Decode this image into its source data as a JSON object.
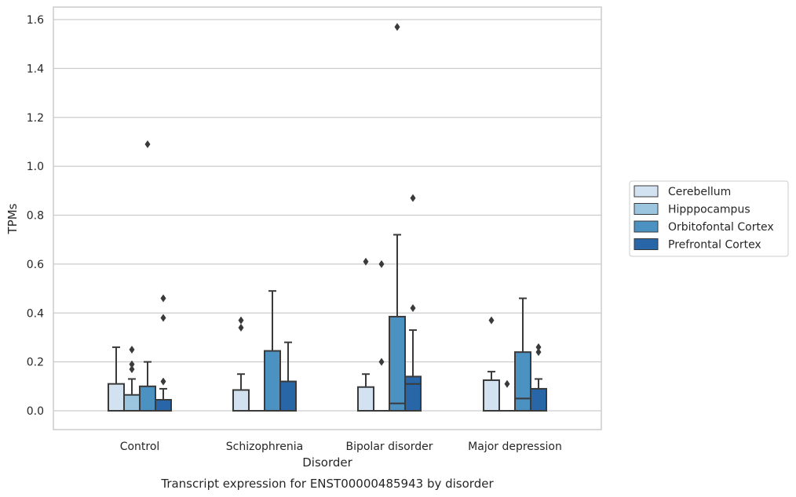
{
  "caption": "Transcript expression for ENST00000485943 by disorder",
  "chart_data": {
    "type": "box",
    "xlabel": "Disorder",
    "ylabel": "TPMs",
    "ylim": [
      -0.075,
      1.65
    ],
    "yticks": [
      0.0,
      0.2,
      0.4,
      0.6,
      0.8,
      1.0,
      1.2,
      1.4,
      1.6
    ],
    "ytick_labels": [
      "0.0",
      "0.2",
      "0.4",
      "0.6",
      "0.8",
      "1.0",
      "1.2",
      "1.4",
      "1.6"
    ],
    "grid": "horizontal",
    "legend_position": "right",
    "categories": [
      "Control",
      "Schizophrenia",
      "Bipolar disorder",
      "Major depression"
    ],
    "series": [
      {
        "name": "Cerebellum",
        "color": "#d3e2f0",
        "boxes": [
          {
            "q1": 0.0,
            "median": 0.0,
            "q3": 0.11,
            "whisker_low": 0.0,
            "whisker_high": 0.26,
            "outliers": []
          },
          {
            "q1": 0.0,
            "median": 0.0,
            "q3": 0.085,
            "whisker_low": 0.0,
            "whisker_high": 0.15,
            "outliers": [
              0.34,
              0.37
            ]
          },
          {
            "q1": 0.0,
            "median": 0.0,
            "q3": 0.097,
            "whisker_low": 0.0,
            "whisker_high": 0.15,
            "outliers": [
              0.61
            ]
          },
          {
            "q1": 0.0,
            "median": 0.0,
            "q3": 0.125,
            "whisker_low": 0.0,
            "whisker_high": 0.16,
            "outliers": [
              0.37
            ]
          }
        ]
      },
      {
        "name": "Hipppocampus",
        "color": "#9cc5e0",
        "boxes": [
          {
            "q1": 0.0,
            "median": 0.0,
            "q3": 0.065,
            "whisker_low": 0.0,
            "whisker_high": 0.13,
            "outliers": [
              0.17,
              0.19,
              0.25
            ]
          },
          {
            "q1": 0.0,
            "median": 0.0,
            "q3": 0.0,
            "whisker_low": 0.0,
            "whisker_high": 0.0,
            "outliers": []
          },
          {
            "q1": 0.0,
            "median": 0.0,
            "q3": 0.0,
            "whisker_low": 0.0,
            "whisker_high": 0.0,
            "outliers": [
              0.2,
              0.6
            ]
          },
          {
            "q1": 0.0,
            "median": 0.0,
            "q3": 0.0,
            "whisker_low": 0.0,
            "whisker_high": 0.0,
            "outliers": [
              0.11
            ]
          }
        ]
      },
      {
        "name": "Orbitofontal Cortex",
        "color": "#4b91c2",
        "boxes": [
          {
            "q1": 0.0,
            "median": 0.0,
            "q3": 0.1,
            "whisker_low": 0.0,
            "whisker_high": 0.2,
            "outliers": [
              1.09
            ]
          },
          {
            "q1": 0.0,
            "median": 0.0,
            "q3": 0.245,
            "whisker_low": 0.0,
            "whisker_high": 0.49,
            "outliers": []
          },
          {
            "q1": 0.0,
            "median": 0.03,
            "q3": 0.385,
            "whisker_low": 0.0,
            "whisker_high": 0.72,
            "outliers": [
              1.57
            ]
          },
          {
            "q1": 0.0,
            "median": 0.05,
            "q3": 0.24,
            "whisker_low": 0.0,
            "whisker_high": 0.46,
            "outliers": []
          }
        ]
      },
      {
        "name": "Prefrontal Cortex",
        "color": "#2866a8",
        "boxes": [
          {
            "q1": 0.0,
            "median": 0.0,
            "q3": 0.045,
            "whisker_low": 0.0,
            "whisker_high": 0.09,
            "outliers": [
              0.12,
              0.38,
              0.46
            ]
          },
          {
            "q1": 0.0,
            "median": 0.0,
            "q3": 0.12,
            "whisker_low": 0.0,
            "whisker_high": 0.28,
            "outliers": []
          },
          {
            "q1": 0.0,
            "median": 0.11,
            "q3": 0.14,
            "whisker_low": 0.0,
            "whisker_high": 0.33,
            "outliers": [
              0.42,
              0.87
            ]
          },
          {
            "q1": 0.0,
            "median": 0.0,
            "q3": 0.09,
            "whisker_low": 0.0,
            "whisker_high": 0.13,
            "outliers": [
              0.24,
              0.26
            ]
          }
        ]
      }
    ]
  }
}
